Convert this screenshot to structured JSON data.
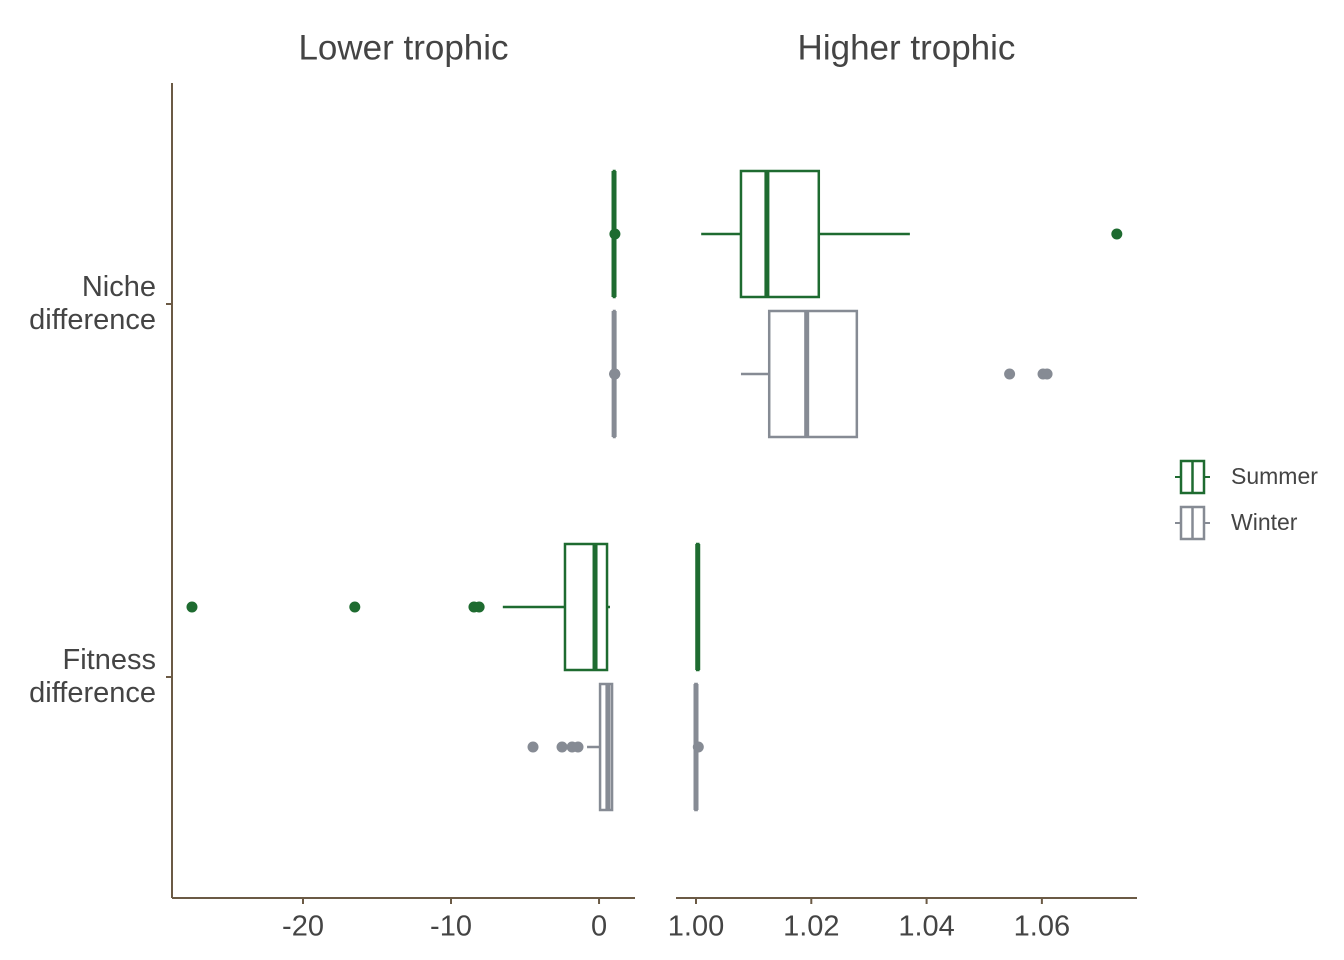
{
  "chart_data": {
    "type": "boxplot",
    "categories": [
      "Niche difference",
      "Fitness difference"
    ],
    "legend": "right",
    "series": [
      {
        "name": "Summer",
        "color": "#1e6b30"
      },
      {
        "name": "Winter",
        "color": "#868b94"
      }
    ],
    "facets": [
      {
        "title": "Lower trophic",
        "xlim": [
          -28.85,
          2.43
        ],
        "xticks": [
          -20,
          -10,
          0
        ],
        "boxes": [
          [
            {
              "min": 1.0009,
              "q1": 1.0078,
              "median": 1.0123,
              "q3": 1.0213,
              "max": 1.0371,
              "outliers": [
                1.073
              ]
            },
            {
              "min": -6.5,
              "q1": -2.3,
              "median": -0.27,
              "q3": 0.54,
              "max": 0.74,
              "outliers": [
                -27.5,
                -16.5,
                -8.45,
                -8.1
              ]
            }
          ],
          [
            {
              "min": 1.0078,
              "q1": 1.0127,
              "median": 1.0192,
              "q3": 1.0279,
              "max": 1.0279,
              "outliers": [
                1.0544,
                1.0602,
                1.0609
              ]
            },
            {
              "min": -0.81,
              "q1": 0.07,
              "median": 0.6,
              "q3": 0.88,
              "max": 0.88,
              "outliers": [
                -4.46,
                -2.5,
                -1.82,
                -1.42
              ]
            }
          ]
        ]
      },
      {
        "title": "Higher trophic",
        "xlim": [
          0.99653,
          1.0765
        ],
        "xticks": [
          {
            "value": 1.0,
            "label": "1.00"
          },
          {
            "value": 1.02,
            "label": "1.02"
          },
          {
            "value": 1.04,
            "label": "1.04"
          },
          {
            "value": 1.06,
            "label": "1.06"
          }
        ],
        "boxes": [
          [
            {
              "min": 1.0009,
              "q1": 1.0078,
              "median": 1.0123,
              "q3": 1.0213,
              "max": 1.0371,
              "outliers": [
                1.073
              ]
            },
            {
              "min": 1.0,
              "q1": 1.0002,
              "median": 1.0003,
              "q3": 1.0004,
              "max": 1.0006,
              "outliers": []
            }
          ],
          [
            {
              "min": 1.0078,
              "q1": 1.0127,
              "median": 1.0192,
              "q3": 1.0279,
              "max": 1.0279,
              "outliers": [
                1.0544,
                1.0602,
                1.0609
              ]
            },
            {
              "min": 0.9995,
              "q1": 0.9999,
              "median": 1.0,
              "q3": 1.0001,
              "max": 1.0003,
              "outliers": [
                1.0004
              ]
            }
          ]
        ]
      }
    ]
  }
}
